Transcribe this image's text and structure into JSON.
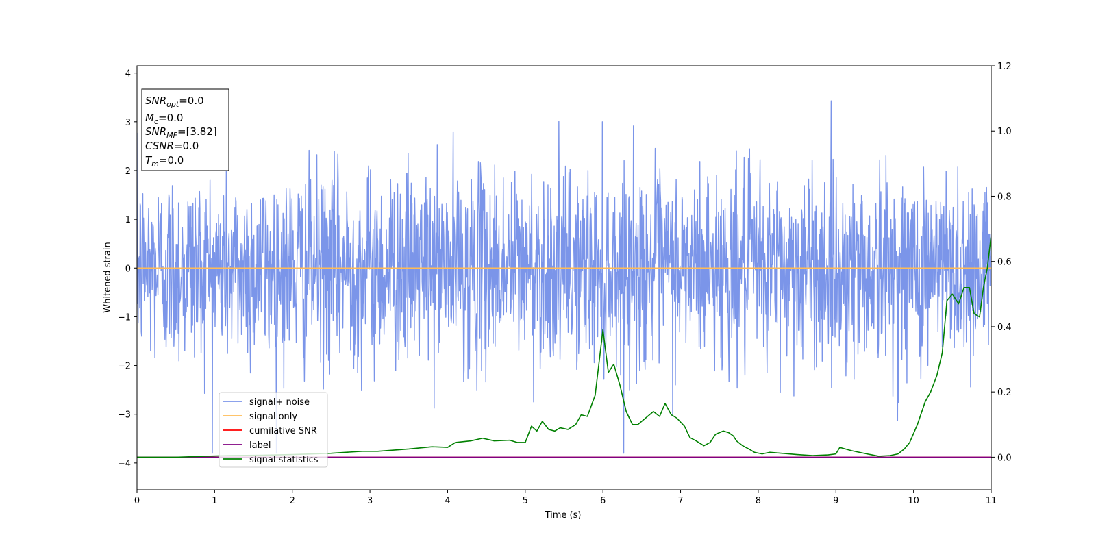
{
  "chart_data": {
    "type": "line",
    "xlabel": "Time (s)",
    "ylabel": "Whitened strain",
    "xlim": [
      0,
      11
    ],
    "ylim_left": [
      -4.55,
      4.15
    ],
    "ylim_right": [
      -0.1,
      1.2
    ],
    "x_ticks": [
      0,
      1,
      2,
      3,
      4,
      5,
      6,
      7,
      8,
      9,
      10,
      11
    ],
    "y_ticks_left": [
      4,
      3,
      2,
      1,
      0,
      -1,
      -2,
      -3,
      -4
    ],
    "y_ticks_right": [
      1.2,
      1.0,
      0.8,
      0.6,
      0.4,
      0.2,
      0.0
    ],
    "x_tick_labels": [
      "0",
      "1",
      "2",
      "3",
      "4",
      "5",
      "6",
      "7",
      "8",
      "9",
      "10",
      "11"
    ],
    "y_tick_labels_left": [
      "4",
      "3",
      "2",
      "1",
      "0",
      "−1",
      "−2",
      "−3",
      "−4"
    ],
    "y_tick_labels_right": [
      "1.2",
      "1.0",
      "0.8",
      "0.6",
      "0.4",
      "0.2",
      "0.0"
    ],
    "series": [
      {
        "name": "signal+ noise",
        "axis": "left",
        "color": "#7b95e9",
        "description_values": "stationary gaussian whitened noise, mean 0, std ~1, range about -3.8 to 3.7",
        "x_start": 0,
        "x_end": 11,
        "samples": 2200,
        "std": 1.0
      },
      {
        "name": "signal only",
        "axis": "left",
        "color": "#ffbb55",
        "x": [
          0,
          11
        ],
        "values": [
          0,
          0
        ]
      },
      {
        "name": "cumilative SNR",
        "axis": "right",
        "color": "#ff0000",
        "x": [
          0,
          11
        ],
        "values": [
          0,
          0
        ]
      },
      {
        "name": "label",
        "axis": "right",
        "color": "#800080",
        "x": [
          0,
          11
        ],
        "values": [
          0,
          0
        ]
      },
      {
        "name": "signal statistics",
        "axis": "right",
        "color": "#008000",
        "x": [
          0,
          0.5,
          0.9,
          1.2,
          1.6,
          2.0,
          2.5,
          2.9,
          3.1,
          3.5,
          3.8,
          4.0,
          4.1,
          4.3,
          4.45,
          4.6,
          4.8,
          4.9,
          5.0,
          5.08,
          5.15,
          5.22,
          5.3,
          5.38,
          5.45,
          5.55,
          5.65,
          5.72,
          5.8,
          5.9,
          6.0,
          6.07,
          6.14,
          6.22,
          6.3,
          6.38,
          6.45,
          6.55,
          6.65,
          6.73,
          6.8,
          6.88,
          6.95,
          7.05,
          7.12,
          7.2,
          7.3,
          7.38,
          7.45,
          7.55,
          7.62,
          7.68,
          7.72,
          7.8,
          7.88,
          7.95,
          8.05,
          8.15,
          8.3,
          8.5,
          8.7,
          8.9,
          9.0,
          9.05,
          9.2,
          9.4,
          9.55,
          9.7,
          9.8,
          9.88,
          9.95,
          10.05,
          10.15,
          10.22,
          10.3,
          10.37,
          10.43,
          10.5,
          10.58,
          10.65,
          10.72,
          10.78,
          10.85,
          10.9,
          10.95,
          11.0
        ],
        "values": [
          0.0,
          0.0,
          0.003,
          0.005,
          0.006,
          0.008,
          0.012,
          0.018,
          0.018,
          0.025,
          0.032,
          0.03,
          0.045,
          0.05,
          0.058,
          0.05,
          0.052,
          0.045,
          0.045,
          0.095,
          0.08,
          0.11,
          0.085,
          0.08,
          0.09,
          0.085,
          0.1,
          0.13,
          0.125,
          0.19,
          0.39,
          0.26,
          0.285,
          0.22,
          0.14,
          0.1,
          0.1,
          0.12,
          0.14,
          0.125,
          0.165,
          0.13,
          0.12,
          0.095,
          0.06,
          0.05,
          0.035,
          0.045,
          0.07,
          0.08,
          0.075,
          0.065,
          0.05,
          0.035,
          0.025,
          0.015,
          0.01,
          0.015,
          0.012,
          0.008,
          0.005,
          0.007,
          0.01,
          0.03,
          0.02,
          0.01,
          0.003,
          0.005,
          0.01,
          0.025,
          0.045,
          0.1,
          0.17,
          0.2,
          0.25,
          0.32,
          0.48,
          0.5,
          0.47,
          0.52,
          0.52,
          0.44,
          0.43,
          0.52,
          0.58,
          0.68
        ]
      }
    ],
    "legend": {
      "placement": "lower-left",
      "entries": [
        "signal+ noise",
        "signal only",
        "cumilative SNR",
        "label",
        "signal statistics"
      ]
    },
    "info_box": {
      "placement": "top-left",
      "lines": [
        {
          "main": "SNR",
          "sub": "opt",
          "rest": "=0.0"
        },
        {
          "main": "M",
          "sub": "c",
          "rest": "=0.0"
        },
        {
          "main": "SNR",
          "sub": "MF",
          "rest": "=[3.82]"
        },
        {
          "main": "CSNR",
          "sub": "",
          "rest": "=0.0"
        },
        {
          "main": "T",
          "sub": "m",
          "rest": "=0.0"
        }
      ]
    },
    "grid": false
  }
}
